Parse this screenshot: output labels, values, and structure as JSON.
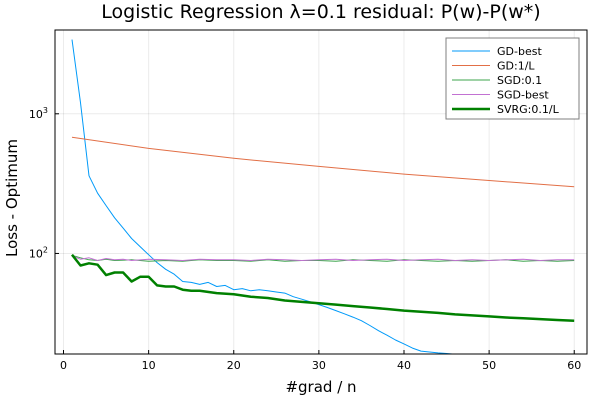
{
  "chart_data": {
    "type": "line",
    "title": "Logistic Regression λ=0.1 residual: P(w)-P(w*)",
    "xlabel": "#grad / n",
    "ylabel": "Loss - Optimum",
    "xlim": [
      -1,
      61.5
    ],
    "ylim_log10": [
      1.28,
      3.6
    ],
    "yscale": "log",
    "grid": true,
    "legend_position": "top-right",
    "xticks": [
      0,
      10,
      20,
      30,
      40,
      50,
      60
    ],
    "xtick_labels": [
      "0",
      "10",
      "20",
      "30",
      "40",
      "50",
      "60"
    ],
    "yticks": [
      100,
      1000
    ],
    "ytick_labels": [
      {
        "base": "10",
        "exp": "2"
      },
      {
        "base": "10",
        "exp": "3"
      }
    ],
    "series": [
      {
        "name": "GD-best",
        "color": "#009af9",
        "width": 1,
        "x": [
          1,
          2,
          3,
          4,
          5,
          6,
          7,
          8,
          9,
          10,
          11,
          12,
          13,
          14,
          15,
          16,
          17,
          18,
          19,
          20,
          21,
          22,
          23,
          24,
          25,
          26,
          27,
          28,
          29,
          30,
          31,
          32,
          33,
          34,
          35,
          36,
          37,
          38,
          39,
          40,
          41,
          42,
          43,
          44,
          45,
          46,
          48,
          50,
          52,
          54,
          56,
          58,
          60
        ],
        "y": [
          3400,
          1200,
          360,
          270,
          220,
          180,
          152,
          128,
          112,
          98,
          86,
          77,
          71,
          63,
          62,
          60,
          62,
          58,
          59,
          55,
          56,
          54,
          55,
          54,
          53,
          52,
          49,
          47,
          45,
          43,
          41,
          39,
          37,
          35,
          33,
          30.5,
          28,
          26,
          24,
          22.5,
          21,
          20,
          19.7,
          19.4,
          19.2,
          19.0,
          18.7,
          18.4,
          18.1,
          17.9,
          17.7,
          17.5,
          17.3
        ]
      },
      {
        "name": "GD:1/L",
        "color": "#e26f46",
        "width": 1,
        "x": [
          1,
          10,
          20,
          30,
          40,
          50,
          60
        ],
        "y": [
          680,
          565,
          480,
          420,
          370,
          333,
          300
        ]
      },
      {
        "name": "SGD:0.1",
        "color": "#3da44d",
        "width": 1,
        "x": [
          1,
          2,
          3,
          4,
          5,
          6,
          8,
          10,
          12,
          14,
          16,
          18,
          20,
          22,
          24,
          26,
          28,
          30,
          32,
          34,
          36,
          38,
          40,
          42,
          44,
          46,
          48,
          50,
          52,
          54,
          56,
          58,
          60
        ],
        "y": [
          97,
          93,
          90,
          89,
          91,
          89,
          90,
          88,
          89,
          88,
          90,
          89,
          89,
          88,
          90,
          88,
          89,
          89,
          88,
          90,
          89,
          88,
          90,
          89,
          88,
          89,
          88,
          89,
          90,
          88,
          89,
          88,
          89
        ]
      },
      {
        "name": "SGD-best",
        "color": "#c271d2",
        "width": 1,
        "x": [
          1,
          2,
          3,
          4,
          5,
          6,
          7,
          8,
          10,
          12,
          14,
          16,
          18,
          20,
          22,
          24,
          26,
          28,
          30,
          32,
          34,
          36,
          38,
          40,
          42,
          44,
          46,
          48,
          50,
          52,
          54,
          56,
          58,
          60
        ],
        "y": [
          96,
          91,
          93,
          89,
          92,
          90,
          91,
          89,
          91,
          90,
          89,
          91,
          90,
          90,
          89,
          91,
          90,
          89,
          90,
          91,
          89,
          90,
          91,
          89,
          90,
          91,
          89,
          90,
          89,
          90,
          91,
          89,
          90,
          90
        ]
      },
      {
        "name": "SVRG:0.1/L",
        "color": "#008000",
        "width": 2.5,
        "x": [
          1,
          2,
          3,
          4,
          5,
          6,
          7,
          8,
          9,
          10,
          11,
          12,
          13,
          14,
          15,
          16,
          18,
          20,
          22,
          24,
          26,
          28,
          30,
          32,
          34,
          36,
          38,
          40,
          42,
          44,
          46,
          48,
          50,
          52,
          54,
          56,
          58,
          60
        ],
        "y": [
          98,
          82,
          85,
          83,
          70,
          73,
          73,
          63,
          68,
          68,
          59,
          58,
          58,
          55,
          54,
          54,
          52,
          51,
          49,
          48,
          46,
          45,
          44,
          43,
          42,
          41,
          40,
          39,
          38.2,
          37.5,
          36.6,
          36.0,
          35.4,
          34.8,
          34.3,
          33.9,
          33.4,
          33.0
        ]
      }
    ]
  }
}
